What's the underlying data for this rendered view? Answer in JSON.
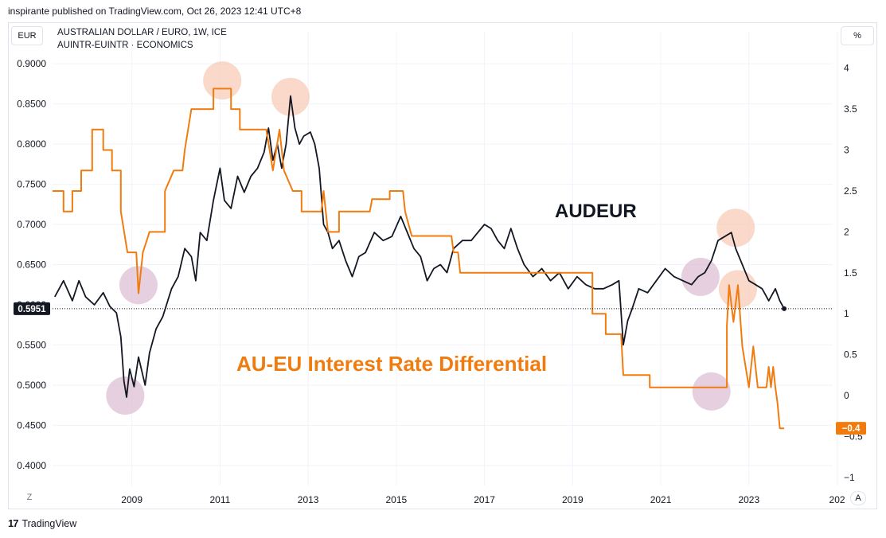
{
  "header": {
    "published": "inspirante published on TradingView.com, Oct 26, 2023 12:41 UTC+8"
  },
  "toolbar": {
    "left_scale_label": "EUR",
    "right_scale_label": "%",
    "z_label": "Z",
    "a_label": "A"
  },
  "legend": {
    "line1": "AUSTRALIAN DOLLAR / EURO, 1W, ICE",
    "line2": "AUINTR-EUINTR · ECONOMICS"
  },
  "footer": {
    "brand": "TradingView",
    "logo_glyph": "17"
  },
  "chart_data": {
    "type": "line",
    "left_axis": {
      "ticks": [
        "0.9000",
        "0.8500",
        "0.8000",
        "0.7500",
        "0.7000",
        "0.6500",
        "0.6000",
        "0.5500",
        "0.5000",
        "0.4500",
        "0.4000"
      ],
      "ylim": [
        0.38,
        0.92
      ]
    },
    "right_axis": {
      "ticks": [
        "4",
        "3.5",
        "3",
        "2.5",
        "2",
        "1.5",
        "1",
        "0.5",
        "0",
        "-0.5",
        "-1"
      ],
      "ylim": [
        -1.05,
        4.25
      ]
    },
    "x_axis": {
      "ticks": [
        "2009",
        "2011",
        "2013",
        "2015",
        "2017",
        "2019",
        "2021",
        "2023",
        "202"
      ],
      "range": [
        2007.2,
        2024.9
      ]
    },
    "annotations": {
      "audeur_label": "AUDEUR",
      "differential_label": "AU-EU Interest Rate Differential"
    },
    "last_values": {
      "audeur": "0.5951",
      "differential": "−0.4"
    },
    "colors": {
      "audeur": "#131722",
      "differential": "#f07c10",
      "circle_pink": "#f7c4ad",
      "circle_purple": "#d9b7cf"
    },
    "series": [
      {
        "name": "AUSTRALIAN DOLLAR / EURO",
        "axis": "left",
        "points": [
          [
            2007.25,
            0.61
          ],
          [
            2007.45,
            0.63
          ],
          [
            2007.65,
            0.605
          ],
          [
            2007.8,
            0.63
          ],
          [
            2007.95,
            0.61
          ],
          [
            2008.15,
            0.6
          ],
          [
            2008.35,
            0.615
          ],
          [
            2008.5,
            0.598
          ],
          [
            2008.65,
            0.59
          ],
          [
            2008.75,
            0.56
          ],
          [
            2008.82,
            0.505
          ],
          [
            2008.88,
            0.485
          ],
          [
            2008.95,
            0.52
          ],
          [
            2009.05,
            0.498
          ],
          [
            2009.15,
            0.535
          ],
          [
            2009.3,
            0.5
          ],
          [
            2009.4,
            0.54
          ],
          [
            2009.55,
            0.57
          ],
          [
            2009.7,
            0.585
          ],
          [
            2009.9,
            0.62
          ],
          [
            2010.05,
            0.635
          ],
          [
            2010.2,
            0.67
          ],
          [
            2010.35,
            0.66
          ],
          [
            2010.45,
            0.63
          ],
          [
            2010.55,
            0.69
          ],
          [
            2010.7,
            0.68
          ],
          [
            2010.85,
            0.73
          ],
          [
            2011.0,
            0.77
          ],
          [
            2011.1,
            0.73
          ],
          [
            2011.25,
            0.72
          ],
          [
            2011.4,
            0.76
          ],
          [
            2011.55,
            0.74
          ],
          [
            2011.7,
            0.76
          ],
          [
            2011.85,
            0.77
          ],
          [
            2012.0,
            0.79
          ],
          [
            2012.1,
            0.82
          ],
          [
            2012.2,
            0.78
          ],
          [
            2012.3,
            0.8
          ],
          [
            2012.4,
            0.77
          ],
          [
            2012.5,
            0.8
          ],
          [
            2012.6,
            0.86
          ],
          [
            2012.7,
            0.82
          ],
          [
            2012.8,
            0.8
          ],
          [
            2012.9,
            0.81
          ],
          [
            2013.05,
            0.815
          ],
          [
            2013.15,
            0.8
          ],
          [
            2013.25,
            0.77
          ],
          [
            2013.35,
            0.7
          ],
          [
            2013.45,
            0.69
          ],
          [
            2013.55,
            0.67
          ],
          [
            2013.7,
            0.68
          ],
          [
            2013.85,
            0.655
          ],
          [
            2014.0,
            0.635
          ],
          [
            2014.15,
            0.66
          ],
          [
            2014.3,
            0.665
          ],
          [
            2014.5,
            0.69
          ],
          [
            2014.7,
            0.68
          ],
          [
            2014.9,
            0.685
          ],
          [
            2015.1,
            0.71
          ],
          [
            2015.25,
            0.69
          ],
          [
            2015.4,
            0.67
          ],
          [
            2015.55,
            0.66
          ],
          [
            2015.7,
            0.63
          ],
          [
            2015.85,
            0.645
          ],
          [
            2016.0,
            0.65
          ],
          [
            2016.15,
            0.64
          ],
          [
            2016.3,
            0.67
          ],
          [
            2016.5,
            0.68
          ],
          [
            2016.7,
            0.68
          ],
          [
            2016.85,
            0.69
          ],
          [
            2017.0,
            0.7
          ],
          [
            2017.15,
            0.695
          ],
          [
            2017.3,
            0.68
          ],
          [
            2017.45,
            0.67
          ],
          [
            2017.6,
            0.695
          ],
          [
            2017.75,
            0.67
          ],
          [
            2017.9,
            0.65
          ],
          [
            2018.1,
            0.635
          ],
          [
            2018.3,
            0.645
          ],
          [
            2018.5,
            0.63
          ],
          [
            2018.7,
            0.64
          ],
          [
            2018.9,
            0.62
          ],
          [
            2019.1,
            0.635
          ],
          [
            2019.3,
            0.625
          ],
          [
            2019.5,
            0.62
          ],
          [
            2019.7,
            0.62
          ],
          [
            2019.9,
            0.625
          ],
          [
            2020.05,
            0.63
          ],
          [
            2020.15,
            0.55
          ],
          [
            2020.25,
            0.58
          ],
          [
            2020.35,
            0.595
          ],
          [
            2020.5,
            0.62
          ],
          [
            2020.7,
            0.615
          ],
          [
            2020.9,
            0.63
          ],
          [
            2021.1,
            0.645
          ],
          [
            2021.3,
            0.635
          ],
          [
            2021.5,
            0.63
          ],
          [
            2021.7,
            0.625
          ],
          [
            2021.85,
            0.635
          ],
          [
            2022.0,
            0.64
          ],
          [
            2022.15,
            0.655
          ],
          [
            2022.3,
            0.68
          ],
          [
            2022.45,
            0.685
          ],
          [
            2022.6,
            0.69
          ],
          [
            2022.7,
            0.67
          ],
          [
            2022.85,
            0.65
          ],
          [
            2023.0,
            0.63
          ],
          [
            2023.15,
            0.625
          ],
          [
            2023.3,
            0.62
          ],
          [
            2023.45,
            0.605
          ],
          [
            2023.6,
            0.62
          ],
          [
            2023.7,
            0.605
          ],
          [
            2023.8,
            0.5951
          ]
        ]
      },
      {
        "name": "AUINTR-EUINTR",
        "axis": "right",
        "points": [
          [
            2007.2,
            2.5
          ],
          [
            2007.45,
            2.5
          ],
          [
            2007.45,
            2.25
          ],
          [
            2007.65,
            2.25
          ],
          [
            2007.65,
            2.5
          ],
          [
            2007.85,
            2.5
          ],
          [
            2007.85,
            2.75
          ],
          [
            2008.1,
            2.75
          ],
          [
            2008.1,
            3.25
          ],
          [
            2008.35,
            3.25
          ],
          [
            2008.35,
            3.0
          ],
          [
            2008.55,
            3.0
          ],
          [
            2008.55,
            2.75
          ],
          [
            2008.75,
            2.75
          ],
          [
            2008.75,
            2.25
          ],
          [
            2008.9,
            1.75
          ],
          [
            2009.1,
            1.75
          ],
          [
            2009.15,
            1.25
          ],
          [
            2009.25,
            1.75
          ],
          [
            2009.4,
            2.0
          ],
          [
            2009.75,
            2.0
          ],
          [
            2009.75,
            2.5
          ],
          [
            2009.95,
            2.75
          ],
          [
            2010.15,
            2.75
          ],
          [
            2010.2,
            3.0
          ],
          [
            2010.35,
            3.5
          ],
          [
            2010.85,
            3.5
          ],
          [
            2010.85,
            3.75
          ],
          [
            2011.25,
            3.75
          ],
          [
            2011.25,
            3.5
          ],
          [
            2011.45,
            3.5
          ],
          [
            2011.45,
            3.25
          ],
          [
            2012.05,
            3.25
          ],
          [
            2012.2,
            2.75
          ],
          [
            2012.35,
            3.25
          ],
          [
            2012.45,
            2.75
          ],
          [
            2012.65,
            2.5
          ],
          [
            2012.85,
            2.5
          ],
          [
            2012.85,
            2.25
          ],
          [
            2013.3,
            2.25
          ],
          [
            2013.35,
            2.5
          ],
          [
            2013.45,
            2.0
          ],
          [
            2013.7,
            2.0
          ],
          [
            2013.7,
            2.25
          ],
          [
            2014.2,
            2.25
          ],
          [
            2014.4,
            2.25
          ],
          [
            2014.45,
            2.4
          ],
          [
            2014.85,
            2.4
          ],
          [
            2014.85,
            2.5
          ],
          [
            2015.15,
            2.5
          ],
          [
            2015.2,
            2.25
          ],
          [
            2015.35,
            1.95
          ],
          [
            2016.25,
            1.95
          ],
          [
            2016.3,
            1.75
          ],
          [
            2016.4,
            1.75
          ],
          [
            2016.45,
            1.5
          ],
          [
            2019.45,
            1.5
          ],
          [
            2019.45,
            1.0
          ],
          [
            2019.75,
            1.0
          ],
          [
            2019.75,
            0.75
          ],
          [
            2020.1,
            0.75
          ],
          [
            2020.15,
            0.25
          ],
          [
            2020.75,
            0.25
          ],
          [
            2020.75,
            0.1
          ],
          [
            2022.5,
            0.1
          ],
          [
            2022.5,
            0.85
          ],
          [
            2022.55,
            1.35
          ],
          [
            2022.65,
            0.9
          ],
          [
            2022.75,
            1.35
          ],
          [
            2022.85,
            0.6
          ],
          [
            2023.0,
            0.1
          ],
          [
            2023.1,
            0.6
          ],
          [
            2023.2,
            0.1
          ],
          [
            2023.4,
            0.1
          ],
          [
            2023.45,
            0.35
          ],
          [
            2023.5,
            0.1
          ],
          [
            2023.55,
            0.35
          ],
          [
            2023.6,
            0.1
          ],
          [
            2023.65,
            -0.1
          ],
          [
            2023.7,
            -0.4
          ],
          [
            2023.8,
            -0.4
          ]
        ]
      }
    ],
    "circles": [
      {
        "x": 2009.15,
        "axis": "right",
        "y": 1.35,
        "color": "purple"
      },
      {
        "x": 2008.85,
        "axis": "right",
        "y": 0.0,
        "color": "purple"
      },
      {
        "x": 2011.05,
        "axis": "right",
        "y": 3.85,
        "color": "pink"
      },
      {
        "x": 2012.6,
        "axis": "right",
        "y": 3.65,
        "color": "pink"
      },
      {
        "x": 2021.9,
        "axis": "right",
        "y": 1.45,
        "color": "purple"
      },
      {
        "x": 2022.15,
        "axis": "right",
        "y": 0.05,
        "color": "purple"
      },
      {
        "x": 2022.7,
        "axis": "right",
        "y": 2.05,
        "color": "pink"
      },
      {
        "x": 2022.75,
        "axis": "right",
        "y": 1.3,
        "color": "pink"
      }
    ]
  }
}
